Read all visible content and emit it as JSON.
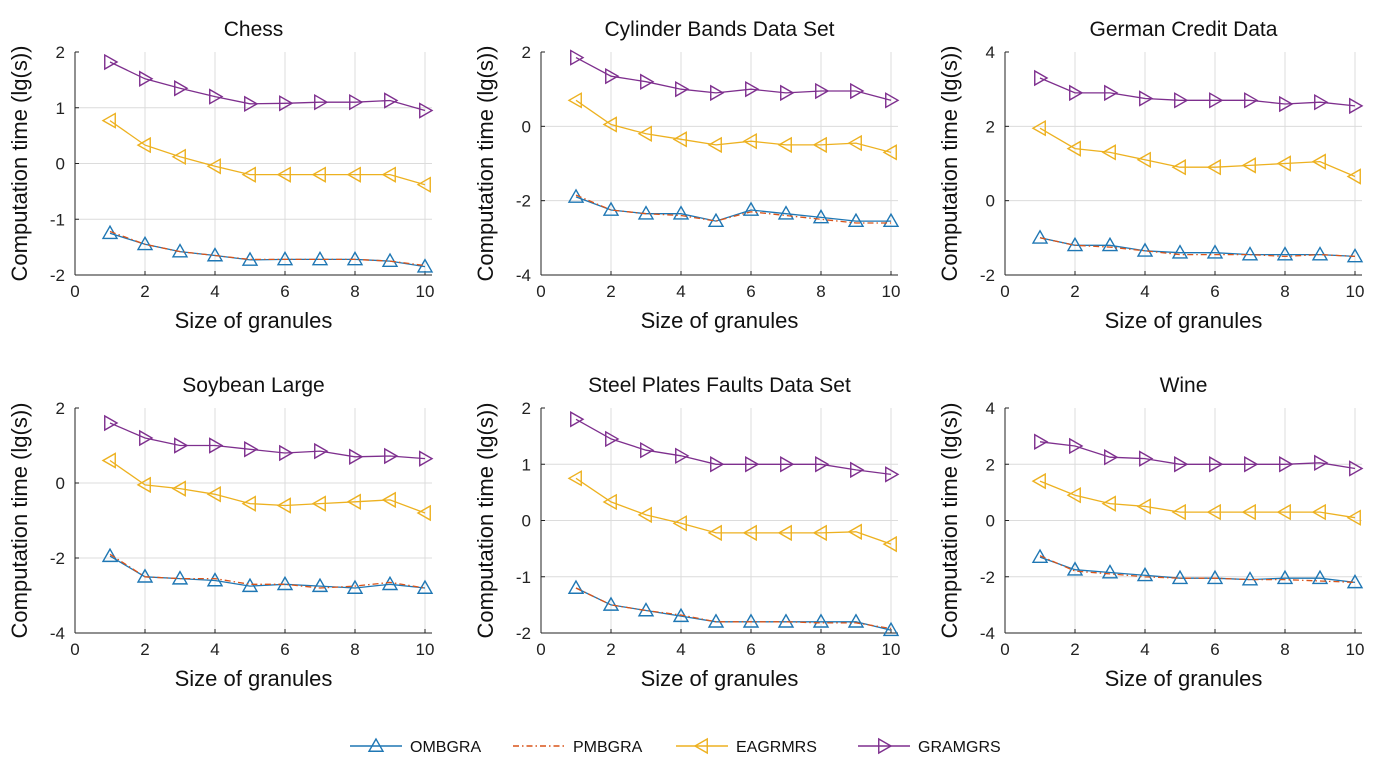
{
  "chart_data": [
    {
      "type": "line",
      "title": "Chess",
      "xlabel": "Size of granules",
      "ylabel": "Computation time (lg(s))",
      "xlim": [
        0,
        10.2
      ],
      "ylim": [
        -2,
        2
      ],
      "xticks": [
        0,
        2,
        4,
        6,
        8,
        10
      ],
      "yticks": [
        -2,
        -1,
        0,
        1,
        2
      ],
      "grid": true,
      "x": [
        1,
        2,
        3,
        4,
        5,
        6,
        7,
        8,
        9,
        10
      ],
      "series": [
        {
          "name": "OMBGRA",
          "values": [
            -1.25,
            -1.45,
            -1.58,
            -1.65,
            -1.73,
            -1.72,
            -1.72,
            -1.72,
            -1.75,
            -1.85
          ]
        },
        {
          "name": "PMBGRA",
          "values": [
            -1.22,
            -1.45,
            -1.58,
            -1.65,
            -1.72,
            -1.72,
            -1.72,
            -1.72,
            -1.75,
            -1.83
          ]
        },
        {
          "name": "EAGRMRS",
          "values": [
            0.77,
            0.33,
            0.12,
            -0.05,
            -0.2,
            -0.2,
            -0.2,
            -0.2,
            -0.2,
            -0.38
          ]
        },
        {
          "name": "GRAMGRS",
          "values": [
            1.82,
            1.52,
            1.35,
            1.2,
            1.07,
            1.08,
            1.1,
            1.1,
            1.13,
            0.95
          ]
        }
      ]
    },
    {
      "type": "line",
      "title": "Cylinder Bands Data Set",
      "xlabel": "Size of granules",
      "ylabel": "Computation time (lg(s))",
      "xlim": [
        0,
        10.2
      ],
      "ylim": [
        -4,
        2
      ],
      "xticks": [
        0,
        2,
        4,
        6,
        8,
        10
      ],
      "yticks": [
        -4,
        -2,
        0,
        2
      ],
      "grid": true,
      "x": [
        1,
        2,
        3,
        4,
        5,
        6,
        7,
        8,
        9,
        10
      ],
      "series": [
        {
          "name": "OMBGRA",
          "values": [
            -1.9,
            -2.25,
            -2.35,
            -2.35,
            -2.55,
            -2.25,
            -2.35,
            -2.45,
            -2.55,
            -2.55
          ]
        },
        {
          "name": "PMBGRA",
          "values": [
            -1.85,
            -2.25,
            -2.35,
            -2.4,
            -2.55,
            -2.3,
            -2.4,
            -2.5,
            -2.6,
            -2.6
          ]
        },
        {
          "name": "EAGRMRS",
          "values": [
            0.7,
            0.05,
            -0.2,
            -0.35,
            -0.5,
            -0.4,
            -0.5,
            -0.5,
            -0.45,
            -0.7
          ]
        },
        {
          "name": "GRAMGRS",
          "values": [
            1.85,
            1.35,
            1.2,
            1.0,
            0.9,
            1.0,
            0.9,
            0.95,
            0.95,
            0.7
          ]
        }
      ]
    },
    {
      "type": "line",
      "title": "German Credit Data",
      "xlabel": "Size of granules",
      "ylabel": "Computation time (lg(s))",
      "xlim": [
        0,
        10.2
      ],
      "ylim": [
        -2,
        4
      ],
      "xticks": [
        0,
        2,
        4,
        6,
        8,
        10
      ],
      "yticks": [
        -2,
        0,
        2,
        4
      ],
      "grid": true,
      "x": [
        1,
        2,
        3,
        4,
        5,
        6,
        7,
        8,
        9,
        10
      ],
      "series": [
        {
          "name": "OMBGRA",
          "values": [
            -1.0,
            -1.2,
            -1.2,
            -1.35,
            -1.4,
            -1.4,
            -1.45,
            -1.45,
            -1.45,
            -1.5
          ]
        },
        {
          "name": "PMBGRA",
          "values": [
            -1.0,
            -1.2,
            -1.25,
            -1.35,
            -1.45,
            -1.45,
            -1.45,
            -1.5,
            -1.45,
            -1.5
          ]
        },
        {
          "name": "EAGRMRS",
          "values": [
            1.95,
            1.4,
            1.3,
            1.1,
            0.9,
            0.9,
            0.95,
            1.0,
            1.05,
            0.65
          ]
        },
        {
          "name": "GRAMGRS",
          "values": [
            3.3,
            2.9,
            2.9,
            2.75,
            2.7,
            2.7,
            2.7,
            2.6,
            2.65,
            2.55
          ]
        }
      ]
    },
    {
      "type": "line",
      "title": "Soybean Large",
      "xlabel": "Size of granules",
      "ylabel": "Computation time (lg(s))",
      "xlim": [
        0,
        10.2
      ],
      "ylim": [
        -4,
        2
      ],
      "xticks": [
        0,
        2,
        4,
        6,
        8,
        10
      ],
      "yticks": [
        -4,
        -2,
        0,
        2
      ],
      "grid": true,
      "x": [
        1,
        2,
        3,
        4,
        5,
        6,
        7,
        8,
        9,
        10
      ],
      "series": [
        {
          "name": "OMBGRA",
          "values": [
            -1.95,
            -2.5,
            -2.55,
            -2.6,
            -2.75,
            -2.7,
            -2.75,
            -2.8,
            -2.7,
            -2.8
          ]
        },
        {
          "name": "PMBGRA",
          "values": [
            -1.9,
            -2.5,
            -2.55,
            -2.55,
            -2.7,
            -2.7,
            -2.8,
            -2.75,
            -2.65,
            -2.8
          ]
        },
        {
          "name": "EAGRMRS",
          "values": [
            0.6,
            -0.05,
            -0.15,
            -0.3,
            -0.55,
            -0.6,
            -0.55,
            -0.5,
            -0.45,
            -0.8
          ]
        },
        {
          "name": "GRAMGRS",
          "values": [
            1.6,
            1.2,
            1.0,
            1.0,
            0.9,
            0.8,
            0.85,
            0.7,
            0.72,
            0.65
          ]
        }
      ]
    },
    {
      "type": "line",
      "title": "Steel Plates Faults Data Set",
      "xlabel": "Size of granules",
      "ylabel": "Computation time (lg(s))",
      "xlim": [
        0,
        10.2
      ],
      "ylim": [
        -2,
        2
      ],
      "xticks": [
        0,
        2,
        4,
        6,
        8,
        10
      ],
      "yticks": [
        -2,
        -1,
        0,
        1,
        2
      ],
      "grid": true,
      "x": [
        1,
        2,
        3,
        4,
        5,
        6,
        7,
        8,
        9,
        10
      ],
      "series": [
        {
          "name": "OMBGRA",
          "values": [
            -1.2,
            -1.5,
            -1.6,
            -1.7,
            -1.8,
            -1.8,
            -1.8,
            -1.8,
            -1.8,
            -1.95
          ]
        },
        {
          "name": "PMBGRA",
          "values": [
            -1.2,
            -1.5,
            -1.6,
            -1.68,
            -1.8,
            -1.8,
            -1.8,
            -1.82,
            -1.82,
            -1.92
          ]
        },
        {
          "name": "EAGRMRS",
          "values": [
            0.75,
            0.33,
            0.1,
            -0.05,
            -0.22,
            -0.22,
            -0.22,
            -0.22,
            -0.2,
            -0.42
          ]
        },
        {
          "name": "GRAMGRS",
          "values": [
            1.8,
            1.45,
            1.25,
            1.15,
            1.0,
            1.0,
            1.0,
            1.0,
            0.9,
            0.82
          ]
        }
      ]
    },
    {
      "type": "line",
      "title": "Wine",
      "xlabel": "Size of granules",
      "ylabel": "Computation time (lg(s))",
      "xlim": [
        0,
        10.2
      ],
      "ylim": [
        -4,
        4
      ],
      "xticks": [
        0,
        2,
        4,
        6,
        8,
        10
      ],
      "yticks": [
        -4,
        -2,
        0,
        2,
        4
      ],
      "grid": true,
      "x": [
        1,
        2,
        3,
        4,
        5,
        6,
        7,
        8,
        9,
        10
      ],
      "series": [
        {
          "name": "OMBGRA",
          "values": [
            -1.3,
            -1.75,
            -1.85,
            -1.95,
            -2.05,
            -2.05,
            -2.1,
            -2.05,
            -2.05,
            -2.2
          ]
        },
        {
          "name": "PMBGRA",
          "values": [
            -1.25,
            -1.8,
            -1.9,
            -2.0,
            -2.05,
            -2.05,
            -2.1,
            -2.1,
            -2.15,
            -2.2
          ]
        },
        {
          "name": "EAGRMRS",
          "values": [
            1.4,
            0.9,
            0.6,
            0.5,
            0.3,
            0.3,
            0.3,
            0.3,
            0.3,
            0.1
          ]
        },
        {
          "name": "GRAMGRS",
          "values": [
            2.8,
            2.65,
            2.25,
            2.2,
            2.0,
            2.0,
            2.0,
            2.0,
            2.05,
            1.85
          ]
        }
      ]
    }
  ],
  "legend": {
    "placement": "bottom-center",
    "entries": [
      {
        "name": "OMBGRA",
        "color": "#1f77b4",
        "marker": "triangle-up",
        "dash": "solid"
      },
      {
        "name": "PMBGRA",
        "color": "#d95319",
        "marker": "none",
        "dash": "dash-dot"
      },
      {
        "name": "EAGRMRS",
        "color": "#edb120",
        "marker": "triangle-left",
        "dash": "solid"
      },
      {
        "name": "GRAMGRS",
        "color": "#7e2f8e",
        "marker": "triangle-right",
        "dash": "solid"
      }
    ]
  }
}
